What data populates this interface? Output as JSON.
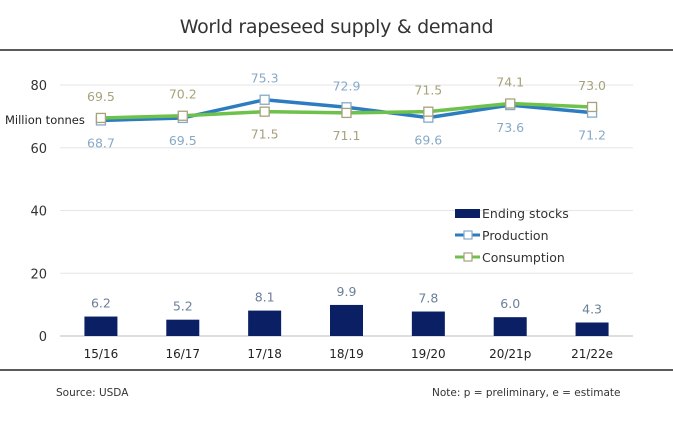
{
  "chart_data": {
    "type": "bar+line",
    "title": "World rapeseed supply & demand",
    "ylabel": "Million tonnes",
    "xlabel": "",
    "ylim": [
      0,
      80
    ],
    "yticks": [
      0,
      20,
      40,
      60,
      80
    ],
    "grid": true,
    "legend_position": "center-right",
    "categories": [
      "15/16",
      "16/17",
      "17/18",
      "18/19",
      "19/20",
      "20/21p",
      "21/22e"
    ],
    "series": [
      {
        "name": "Ending stocks",
        "kind": "bar",
        "color": "#0b1f64",
        "label_color": "#6b7f99",
        "values": [
          6.2,
          5.2,
          8.1,
          9.9,
          7.8,
          6.0,
          4.3
        ]
      },
      {
        "name": "Production",
        "kind": "line",
        "color": "#2e7cc0",
        "label_color": "#86a9c8",
        "label_position": [
          "below",
          "below",
          "above",
          "above",
          "below",
          "below",
          "below"
        ],
        "values": [
          68.7,
          69.5,
          75.3,
          72.9,
          69.6,
          73.6,
          71.2
        ]
      },
      {
        "name": "Consumption",
        "kind": "line",
        "color": "#6ec14b",
        "label_color": "#a8a27a",
        "label_position": [
          "above",
          "above",
          "below",
          "below",
          "above",
          "above",
          "above"
        ],
        "values": [
          69.5,
          70.2,
          71.5,
          71.1,
          71.5,
          74.1,
          73.0
        ]
      }
    ]
  },
  "footer": {
    "source": "Source: USDA",
    "note": "Note: p = preliminary, e = estimate"
  }
}
